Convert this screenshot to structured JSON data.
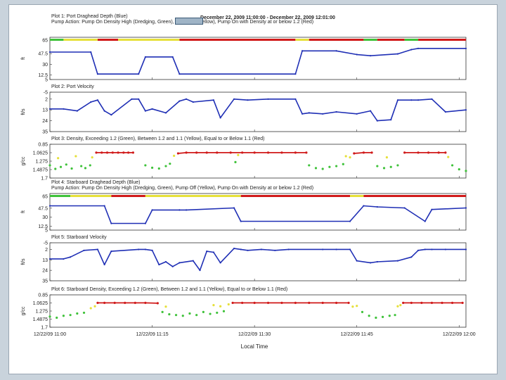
{
  "figure": {
    "header": "December 22, 2009 11:00:00  -  December 22, 2009 12:01:00",
    "x_axis_label": "Local Time",
    "x_tick_labels": [
      "12/22/09 11:00",
      "12/22/09 11:15",
      "12/22/09 11:30",
      "12/22/09 11:45",
      "12/22/09 12:00"
    ],
    "colors": {
      "blue": "#1f2fb5",
      "green": "#3fc23a",
      "yellow": "#e6e03a",
      "red": "#d01a1a",
      "frame_bg": "#c9d3dc"
    }
  },
  "chart_data": [
    {
      "type": "line",
      "title": "Plot 1: Port Draghead Depth (Blue)",
      "subtitle": "Pump Action: Pump On Density High (Dredging, Green), Pump Off (Yellow), Pump On with Density at or below 1.2 (Red)",
      "ylabel": "ft",
      "ylim": [
        65,
        5
      ],
      "yticks": [
        "5",
        "12.5",
        "30",
        "47.5",
        "65"
      ],
      "x_minutes": [
        0,
        6,
        7,
        13,
        14,
        18,
        19,
        36,
        37,
        42,
        45,
        47,
        51,
        53,
        54,
        61
      ],
      "series": [
        {
          "values": [
            50,
            50,
            14,
            14,
            42,
            42,
            14,
            14,
            52,
            52,
            46,
            44,
            47,
            54,
            56,
            56
          ]
        }
      ],
      "status_bar": {
        "segments": [
          {
            "start": 0,
            "end": 2,
            "status": "green"
          },
          {
            "start": 2,
            "end": 7,
            "status": "yellow"
          },
          {
            "start": 7,
            "end": 10,
            "status": "red"
          },
          {
            "start": 10,
            "end": 19,
            "status": "yellow"
          },
          {
            "start": 19,
            "end": 36,
            "status": "red"
          },
          {
            "start": 36,
            "end": 38,
            "status": "yellow"
          },
          {
            "start": 38,
            "end": 46,
            "status": "red"
          },
          {
            "start": 46,
            "end": 48,
            "status": "green"
          },
          {
            "start": 48,
            "end": 52,
            "status": "red"
          },
          {
            "start": 52,
            "end": 54,
            "status": "green"
          },
          {
            "start": 54,
            "end": 61,
            "status": "red"
          }
        ]
      }
    },
    {
      "type": "line",
      "title": "Plot 2: Port Velocity",
      "ylabel": "ft/s",
      "ylim": [
        -5,
        35
      ],
      "yticks": [
        "-5",
        "2",
        "13",
        "24",
        "35"
      ],
      "x_minutes": [
        0,
        2,
        4,
        6,
        7,
        8,
        9,
        12,
        13,
        14,
        15,
        17,
        19,
        20,
        21,
        24,
        25,
        27,
        29,
        32,
        36,
        37,
        38,
        40,
        42,
        45,
        47,
        48,
        50,
        51,
        53,
        54,
        56,
        58,
        61
      ],
      "series": [
        {
          "values": [
            12,
            12,
            14,
            5,
            3,
            14,
            18,
            2,
            2,
            14,
            12,
            16,
            4,
            2,
            5,
            3,
            21,
            2,
            3,
            2,
            2,
            17,
            16,
            17,
            15,
            17,
            14,
            24,
            23,
            3,
            3,
            3,
            2,
            15,
            13
          ]
        }
      ]
    },
    {
      "type": "scatter",
      "title": "Plot 3: Density, Exceeding 1.2 (Green), Between 1.2 and 1.1 (Yellow), Equal to or Below 1.1 (Red)",
      "ylabel": "g/cc",
      "ylim": [
        0.85,
        1.7
      ],
      "yticks": [
        "0.85",
        "1.0625",
        "1.275",
        "1.4875",
        "1.7"
      ],
      "series": [
        {
          "color": "green",
          "x_minutes": [
            0,
            0.8,
            1.6,
            2.4,
            3.2,
            4.6,
            5.2,
            5.9,
            14,
            15,
            16,
            17,
            17.6,
            27.2,
            38,
            39,
            40,
            41,
            42,
            43,
            48,
            49,
            50,
            51,
            59,
            60,
            61
          ],
          "values": [
            1.38,
            1.47,
            1.42,
            1.36,
            1.46,
            1.4,
            1.45,
            1.38,
            1.38,
            1.44,
            1.46,
            1.4,
            1.34,
            1.3,
            1.38,
            1.45,
            1.47,
            1.42,
            1.4,
            1.35,
            1.4,
            1.45,
            1.42,
            1.38,
            1.38,
            1.48,
            1.52
          ]
        },
        {
          "color": "yellow",
          "x_minutes": [
            1.2,
            3.8,
            6.2,
            18.2,
            27.6,
            43.4,
            44,
            49.4,
            58.4
          ],
          "values": [
            1.2,
            1.15,
            1.18,
            1.14,
            1.12,
            1.15,
            1.18,
            1.18,
            1.17
          ]
        },
        {
          "color": "red",
          "x_minutes": [
            6.8,
            7.6,
            8.4,
            9.2,
            10,
            10.8,
            11.5,
            12.2,
            18.8,
            20,
            21.5,
            23,
            24.5,
            26.5,
            28.2,
            30,
            32,
            34,
            36,
            37.6,
            44.6,
            46,
            47.2,
            52,
            54,
            55.5,
            57,
            58
          ],
          "values": [
            1.06,
            1.06,
            1.06,
            1.06,
            1.06,
            1.06,
            1.06,
            1.06,
            1.08,
            1.06,
            1.06,
            1.06,
            1.06,
            1.06,
            1.06,
            1.06,
            1.06,
            1.06,
            1.06,
            1.06,
            1.08,
            1.06,
            1.06,
            1.06,
            1.06,
            1.06,
            1.06,
            1.06
          ]
        }
      ]
    },
    {
      "type": "line",
      "title": "Plot 4: Starboard Draghead Depth (Blue)",
      "subtitle": "Pump Action: Pump On Density High (Dredging, Green), Pump Off (Yellow), Pump On with Density at or below 1.2 (Red)",
      "ylabel": "ft",
      "ylim": [
        65,
        5
      ],
      "yticks": [
        "5",
        "12.5",
        "30",
        "47.5",
        "65"
      ],
      "x_minutes": [
        0,
        8,
        9,
        14,
        15,
        19,
        20,
        27,
        28,
        44,
        46,
        48,
        52,
        55,
        56,
        61
      ],
      "series": [
        {
          "values": [
            52,
            52,
            18,
            18,
            44,
            44,
            44,
            48,
            22,
            22,
            52,
            50,
            48,
            22,
            45,
            48
          ]
        }
      ],
      "status_bar": {
        "segments": [
          {
            "start": 0,
            "end": 3,
            "status": "green"
          },
          {
            "start": 3,
            "end": 9,
            "status": "yellow"
          },
          {
            "start": 9,
            "end": 14,
            "status": "red"
          },
          {
            "start": 14,
            "end": 28,
            "status": "yellow"
          },
          {
            "start": 28,
            "end": 44,
            "status": "red"
          },
          {
            "start": 44,
            "end": 46,
            "status": "yellow"
          },
          {
            "start": 46,
            "end": 61,
            "status": "red"
          }
        ]
      }
    },
    {
      "type": "line",
      "title": "Plot 5: Starboard Velocity",
      "ylabel": "ft/s",
      "ylim": [
        -5,
        35
      ],
      "yticks": [
        "-5",
        "2",
        "13",
        "24",
        "35"
      ],
      "x_minutes": [
        0,
        2,
        3,
        5,
        7,
        8,
        9,
        13,
        14,
        15,
        16,
        17,
        18,
        19,
        21,
        22,
        23,
        24,
        25,
        27,
        28,
        29,
        31,
        33,
        35,
        40,
        42,
        44,
        45,
        47,
        48,
        51,
        53,
        54,
        55,
        56,
        58,
        61
      ],
      "series": [
        {
          "values": [
            12,
            12,
            10,
            3,
            2,
            18,
            4,
            2,
            2,
            3,
            18,
            15,
            20,
            16,
            14,
            24,
            4,
            5,
            16,
            1,
            2,
            3,
            2,
            3,
            2,
            2,
            2,
            2,
            14,
            16,
            15,
            14,
            10,
            3,
            2,
            2,
            2,
            2
          ]
        }
      ]
    },
    {
      "type": "scatter",
      "title": "Plot 6: Starboard Density, Exceeding 1.2 (Green), Between 1.2 and 1.1 (Yellow), Equal to or Below 1.1 (Red)",
      "ylabel": "g/cc",
      "ylim": [
        0.85,
        1.7
      ],
      "yticks": [
        "0.85",
        "1.0625",
        "1.275",
        "1.4875",
        "1.7"
      ],
      "series": [
        {
          "color": "green",
          "x_minutes": [
            0,
            1,
            2,
            3,
            4,
            5,
            16.5,
            17.5,
            18.5,
            19.5,
            20.5,
            21.5,
            22.5,
            23.5,
            24.5,
            25.5,
            45.8,
            46.8,
            47.8,
            48.8,
            49.8,
            50.6
          ],
          "values": [
            1.42,
            1.45,
            1.4,
            1.38,
            1.34,
            1.32,
            1.3,
            1.36,
            1.38,
            1.4,
            1.34,
            1.38,
            1.3,
            1.35,
            1.32,
            1.28,
            1.3,
            1.4,
            1.45,
            1.43,
            1.4,
            1.38
          ]
        },
        {
          "color": "yellow",
          "x_minutes": [
            6,
            6.6,
            17,
            24,
            25,
            26.2,
            44.4,
            45,
            51,
            51.4
          ],
          "values": [
            1.2,
            1.15,
            1.16,
            1.12,
            1.15,
            1.1,
            1.16,
            1.14,
            1.15,
            1.12
          ]
        },
        {
          "color": "red",
          "x_minutes": [
            7,
            8,
            9.5,
            11,
            12.5,
            14,
            15.8,
            26.8,
            28.2,
            30,
            32,
            34,
            36,
            38,
            40,
            42,
            43.8,
            51.8,
            53,
            54.5,
            56,
            57.5,
            59,
            60.5
          ],
          "values": [
            1.06,
            1.06,
            1.06,
            1.06,
            1.06,
            1.06,
            1.07,
            1.06,
            1.06,
            1.06,
            1.06,
            1.06,
            1.06,
            1.06,
            1.06,
            1.06,
            1.06,
            1.06,
            1.06,
            1.06,
            1.06,
            1.06,
            1.06,
            1.06
          ]
        }
      ]
    }
  ]
}
